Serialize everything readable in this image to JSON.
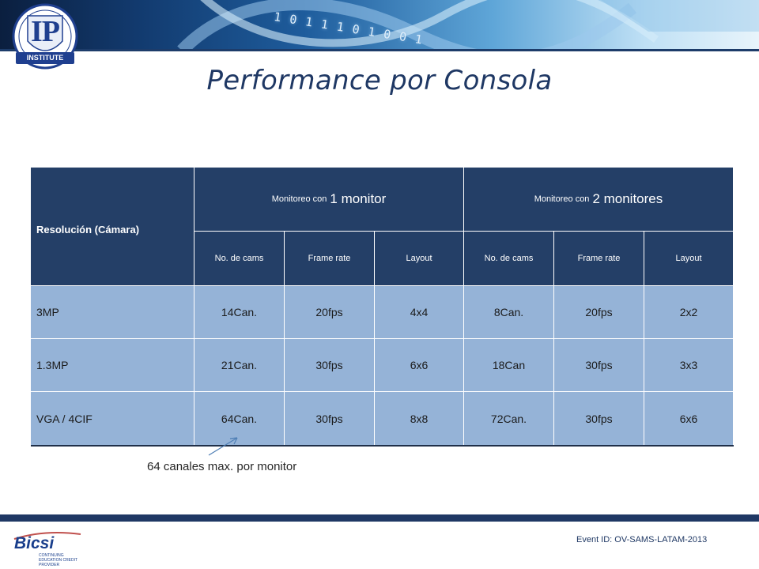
{
  "banner": {
    "binary": "1 0 1 1 1 0 1 0 0 1",
    "logo_letters": "IP",
    "logo_ribbon": "INSTITUTE"
  },
  "title": "Performance por Consola",
  "table": {
    "corner": "Resolución  (Cámara)",
    "groups": [
      {
        "small": "Monitoreo con",
        "large": "1 monitor"
      },
      {
        "small": "Monitoreo con",
        "large": "2 monitores"
      }
    ],
    "subheaders": [
      "No. de cams",
      "Frame rate",
      "Layout",
      "No. de cams",
      "Frame rate",
      "Layout"
    ],
    "rows": [
      [
        "3MP",
        "14Can.",
        "20fps",
        "4x4",
        "8Can.",
        "20fps",
        "2x2"
      ],
      [
        "1.3MP",
        "21Can.",
        "30fps",
        "6x6",
        "18Can",
        "30fps",
        "3x3"
      ],
      [
        "VGA / 4CIF",
        "64Can.",
        "30fps",
        "8x8",
        "72Can.",
        "30fps",
        "6x6"
      ]
    ]
  },
  "note": "64 canales max. por monitor",
  "footer": {
    "bicsi": "Bicsi",
    "bicsi_sub": "CONTINUING EDUCATION CREDIT PROVIDER",
    "event_id": "Event ID: OV-SAMS-LATAM-2013"
  },
  "colors": {
    "header_bg": "#243f67",
    "body_bg": "#95b3d7",
    "title": "#1f3864",
    "footer_bar": "#1f3864"
  }
}
